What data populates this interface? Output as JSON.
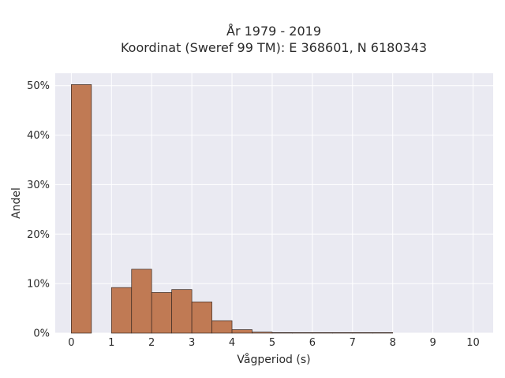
{
  "chart_data": {
    "type": "bar",
    "title_line1": "År 1979 - 2019",
    "title_line2": "Koordinat (Sweref 99 TM): E 368601, N 6180343",
    "xlabel": "Vågperiod (s)",
    "ylabel": "Andel",
    "x_ticks": [
      "0",
      "1",
      "2",
      "3",
      "4",
      "5",
      "6",
      "7",
      "8",
      "9",
      "10"
    ],
    "y_ticks": [
      "0%",
      "10%",
      "20%",
      "30%",
      "40%",
      "50%"
    ],
    "xlim": [
      -0.4,
      10.5
    ],
    "ylim": [
      0,
      0.525
    ],
    "grid": true,
    "bar_color": "#c07a54",
    "edge_color": "#3a2a22",
    "plot_bg": "#eaeaf2",
    "bins": [
      {
        "x0": 0.0,
        "x1": 0.5,
        "value": 0.502
      },
      {
        "x0": 0.5,
        "x1": 1.0,
        "value": 0.0
      },
      {
        "x0": 1.0,
        "x1": 1.5,
        "value": 0.092
      },
      {
        "x0": 1.5,
        "x1": 2.0,
        "value": 0.129
      },
      {
        "x0": 2.0,
        "x1": 2.5,
        "value": 0.082
      },
      {
        "x0": 2.5,
        "x1": 3.0,
        "value": 0.088
      },
      {
        "x0": 3.0,
        "x1": 3.5,
        "value": 0.063
      },
      {
        "x0": 3.5,
        "x1": 4.0,
        "value": 0.025
      },
      {
        "x0": 4.0,
        "x1": 4.5,
        "value": 0.007
      },
      {
        "x0": 4.5,
        "x1": 5.0,
        "value": 0.002
      },
      {
        "x0": 5.0,
        "x1": 5.5,
        "value": 0.001
      },
      {
        "x0": 5.5,
        "x1": 6.0,
        "value": 0.0005
      },
      {
        "x0": 6.0,
        "x1": 6.5,
        "value": 0.0005
      },
      {
        "x0": 6.5,
        "x1": 7.0,
        "value": 0.0005
      },
      {
        "x0": 7.0,
        "x1": 7.5,
        "value": 0.0005
      },
      {
        "x0": 7.5,
        "x1": 8.0,
        "value": 0.0005
      }
    ]
  }
}
